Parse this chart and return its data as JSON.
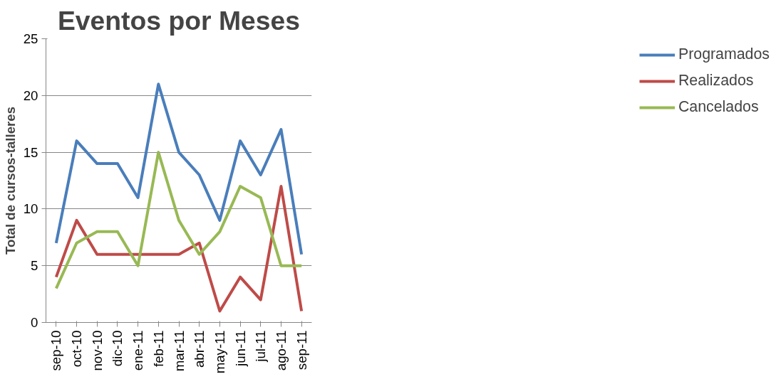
{
  "chart_data": {
    "type": "line",
    "title": "Eventos por Meses",
    "ylabel": "Total de cursos-talleres",
    "categories": [
      "sep-10",
      "oct-10",
      "nov-10",
      "dic-10",
      "ene-11",
      "feb-11",
      "mar-11",
      "abr-11",
      "may-11",
      "jun-11",
      "jul-11",
      "ago-11",
      "sep-11"
    ],
    "series": [
      {
        "name": "Programados",
        "color": "#4a7ebb",
        "values": [
          7,
          16,
          14,
          14,
          11,
          21,
          15,
          13,
          9,
          16,
          13,
          17,
          6
        ]
      },
      {
        "name": "Realizados",
        "color": "#be4b48",
        "values": [
          4,
          9,
          6,
          6,
          6,
          6,
          6,
          7,
          1,
          4,
          2,
          12,
          1
        ]
      },
      {
        "name": "Cancelados",
        "color": "#98b954",
        "values": [
          3,
          7,
          8,
          8,
          5,
          15,
          9,
          6,
          8,
          12,
          11,
          5,
          5
        ]
      }
    ],
    "ylim": [
      0,
      25
    ],
    "yticks": [
      0,
      5,
      10,
      15,
      20,
      25
    ],
    "grid": "y",
    "legend": "right",
    "marker": "none",
    "line_style": "solid"
  }
}
